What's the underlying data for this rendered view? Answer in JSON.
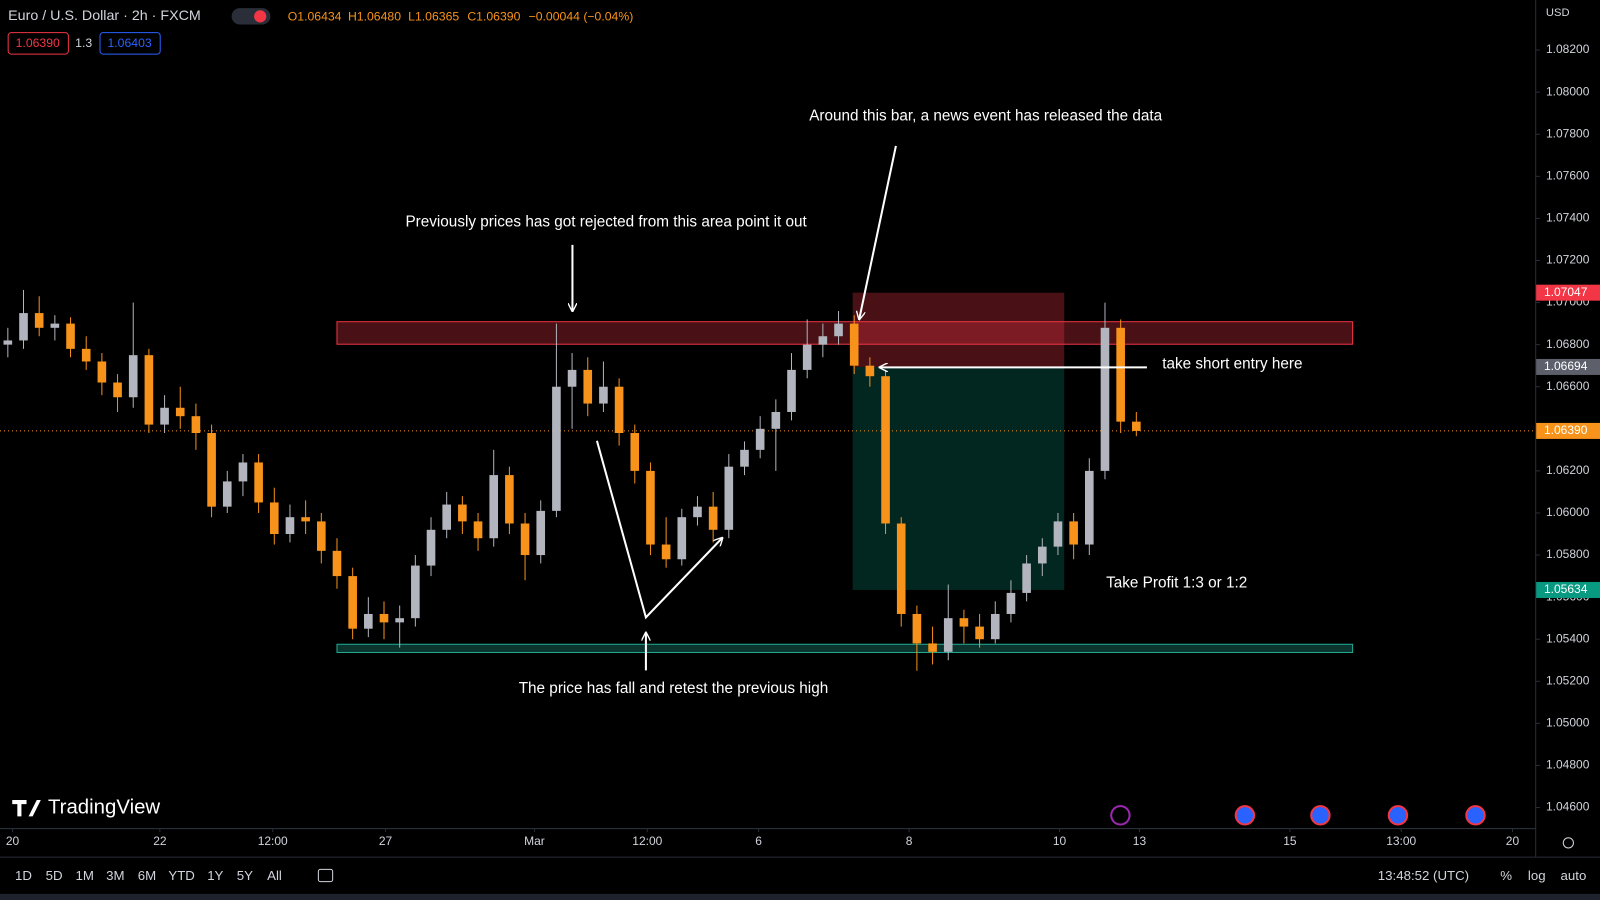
{
  "header": {
    "symbol": "Euro / U.S. Dollar · 2h · FXCM",
    "ohlc": [
      "O1.06434",
      "H1.06480",
      "L1.06365",
      "C1.06390",
      "−0.00044 (−0.04%)"
    ],
    "bid": "1.06390",
    "spread": "1.3",
    "ask": "1.06403",
    "currency": "USD"
  },
  "chart_data": {
    "type": "candlestick",
    "title": "Euro / U.S. Dollar · 2h · FXCM",
    "open": [
      1.068,
      1.0682,
      1.0695,
      1.0688,
      1.069,
      1.0678,
      1.0672,
      1.0662,
      1.0655,
      1.0675,
      1.0642,
      1.065,
      1.0646,
      1.0638,
      1.0603,
      1.0615,
      1.0624,
      1.0605,
      1.059,
      1.0598,
      1.0596,
      1.0582,
      1.057,
      1.0545,
      1.0552,
      1.0548,
      1.055,
      1.0575,
      1.0592,
      1.0604,
      1.0596,
      1.0588,
      1.0618,
      1.0595,
      1.058,
      1.0601,
      1.066,
      1.0668,
      1.0652,
      1.066,
      1.0638,
      1.062,
      1.0585,
      1.0578,
      1.0598,
      1.0603,
      1.0592,
      1.0622,
      1.063,
      1.064,
      1.0648,
      1.0668,
      1.068,
      1.0684,
      1.069,
      1.067,
      1.0665,
      1.0595,
      1.0552,
      1.0538,
      1.0534,
      1.055,
      1.0546,
      1.054,
      1.0552,
      1.0562,
      1.0576,
      1.0584,
      1.0596,
      1.0585,
      1.062,
      1.0688,
      1.06434
    ],
    "high": [
      1.0688,
      1.0706,
      1.0703,
      1.0694,
      1.0693,
      1.0684,
      1.0676,
      1.0666,
      1.07,
      1.0678,
      1.0656,
      1.066,
      1.0652,
      1.0642,
      1.062,
      1.0628,
      1.0628,
      1.0612,
      1.0604,
      1.0606,
      1.06,
      1.0588,
      1.0574,
      1.056,
      1.0558,
      1.0556,
      1.058,
      1.0598,
      1.061,
      1.0608,
      1.06,
      1.063,
      1.0622,
      1.06,
      1.0606,
      1.069,
      1.0676,
      1.0674,
      1.0672,
      1.0664,
      1.0642,
      1.0624,
      1.0598,
      1.0602,
      1.0608,
      1.061,
      1.0628,
      1.0634,
      1.0646,
      1.0654,
      1.0676,
      1.0692,
      1.069,
      1.0696,
      1.0694,
      1.0674,
      1.0668,
      1.0598,
      1.0556,
      1.0546,
      1.0566,
      1.0554,
      1.0552,
      1.0558,
      1.0568,
      1.058,
      1.0588,
      1.06,
      1.06,
      1.0626,
      1.07,
      1.0692,
      1.0648
    ],
    "low": [
      1.0674,
      1.0678,
      1.0684,
      1.0682,
      1.0674,
      1.0668,
      1.0656,
      1.0648,
      1.065,
      1.0638,
      1.0638,
      1.064,
      1.063,
      1.0598,
      1.06,
      1.0608,
      1.06,
      1.0585,
      1.0586,
      1.059,
      1.0576,
      1.0564,
      1.054,
      1.0541,
      1.054,
      1.0536,
      1.0546,
      1.057,
      1.0588,
      1.059,
      1.0582,
      1.0584,
      1.059,
      1.0568,
      1.0576,
      1.0598,
      1.064,
      1.0646,
      1.0648,
      1.0632,
      1.0614,
      1.058,
      1.0574,
      1.0575,
      1.0594,
      1.0586,
      1.0588,
      1.0618,
      1.0626,
      1.062,
      1.0644,
      1.0664,
      1.0674,
      1.068,
      1.0666,
      1.066,
      1.059,
      1.0546,
      1.0525,
      1.0528,
      1.053,
      1.0538,
      1.0536,
      1.0538,
      1.0548,
      1.0558,
      1.057,
      1.058,
      1.0578,
      1.058,
      1.0616,
      1.0638,
      1.06365
    ],
    "close": [
      1.0682,
      1.0695,
      1.0688,
      1.069,
      1.0678,
      1.0672,
      1.0662,
      1.0655,
      1.0675,
      1.0642,
      1.065,
      1.0646,
      1.0638,
      1.0603,
      1.0615,
      1.0624,
      1.0605,
      1.059,
      1.0598,
      1.0596,
      1.0582,
      1.057,
      1.0545,
      1.0552,
      1.0548,
      1.055,
      1.0575,
      1.0592,
      1.0604,
      1.0596,
      1.0588,
      1.0618,
      1.0595,
      1.058,
      1.0601,
      1.066,
      1.0668,
      1.0652,
      1.066,
      1.0638,
      1.062,
      1.0585,
      1.0578,
      1.0598,
      1.0603,
      1.0592,
      1.0622,
      1.063,
      1.064,
      1.0648,
      1.0668,
      1.068,
      1.0684,
      1.069,
      1.067,
      1.0665,
      1.0595,
      1.0552,
      1.0538,
      1.0534,
      1.055,
      1.0546,
      1.054,
      1.0552,
      1.0562,
      1.0576,
      1.0584,
      1.0596,
      1.0585,
      1.062,
      1.0688,
      1.06434,
      1.0639
    ],
    "up_color": "#b2b5be",
    "down_color": "#f7931a",
    "last_price_label": "1.06390",
    "xlim": [
      -0.5,
      97.5
    ],
    "xticks": [
      {
        "value": 0.3,
        "label": "20"
      },
      {
        "value": 9.7,
        "label": "22"
      },
      {
        "value": 16.9,
        "label": "12:00"
      },
      {
        "value": 24.1,
        "label": "27"
      },
      {
        "value": 33.6,
        "label": "Mar"
      },
      {
        "value": 40.8,
        "label": "12:00"
      },
      {
        "value": 47.9,
        "label": "6"
      },
      {
        "value": 57.5,
        "label": "8"
      },
      {
        "value": 67.1,
        "label": "10"
      },
      {
        "value": 72.2,
        "label": "13"
      },
      {
        "value": 81.8,
        "label": "15"
      },
      {
        "value": 88.9,
        "label": "13:00"
      },
      {
        "value": 96,
        "label": "20"
      }
    ],
    "ylim": [
      1.04498,
      1.08438
    ],
    "yticks": [
      {
        "value": 1.046,
        "label": "1.04600"
      },
      {
        "value": 1.048,
        "label": "1.04800"
      },
      {
        "value": 1.05,
        "label": "1.05000"
      },
      {
        "value": 1.052,
        "label": "1.05200"
      },
      {
        "value": 1.054,
        "label": "1.05400"
      },
      {
        "value": 1.056,
        "label": "1.05600"
      },
      {
        "value": 1.058,
        "label": "1.05800"
      },
      {
        "value": 1.06,
        "label": "1.06000"
      },
      {
        "value": 1.062,
        "label": "1.06200"
      },
      {
        "value": 1.064,
        "label": "1.06400"
      },
      {
        "value": 1.066,
        "label": "1.06600"
      },
      {
        "value": 1.068,
        "label": "1.06800"
      },
      {
        "value": 1.07,
        "label": "1.07000"
      },
      {
        "value": 1.072,
        "label": "1.07200"
      },
      {
        "value": 1.074,
        "label": "1.07400"
      },
      {
        "value": 1.076,
        "label": "1.07600"
      },
      {
        "value": 1.078,
        "label": "1.07800"
      },
      {
        "value": 1.08,
        "label": "1.08000"
      },
      {
        "value": 1.082,
        "label": "1.08200"
      }
    ],
    "grid": false,
    "resistance_zone": {
      "ylim": [
        1.06802,
        1.06909
      ],
      "xrange": [
        21.0,
        85.8
      ],
      "color": "#f23645"
    },
    "support_zone": {
      "ylim": [
        1.05337,
        1.05376
      ],
      "xrange": [
        21.0,
        85.8
      ],
      "color": "#22ab94"
    },
    "short_position": {
      "entry": 1.06694,
      "stop": 1.07047,
      "target": 1.05634,
      "xrange": [
        53.9,
        67.4
      ],
      "stop_color": "#f23645",
      "target_color": "#089981",
      "entry_color": "#5d606b"
    },
    "annotations": [
      "Around this bar, a news event has released the data",
      "Previously prices has got rejected from this area point it out",
      "take short entry here",
      "Take Profit 1:3 or 1:2",
      "The price has fall and retest the previous high"
    ]
  },
  "toolbar": {
    "ranges": [
      "1D",
      "5D",
      "1M",
      "3M",
      "6M",
      "YTD",
      "1Y",
      "5Y",
      "All"
    ],
    "clock": "13:48:52 (UTC)",
    "percent": "%",
    "log": "log",
    "auto": "auto"
  },
  "brand": "TradingView"
}
